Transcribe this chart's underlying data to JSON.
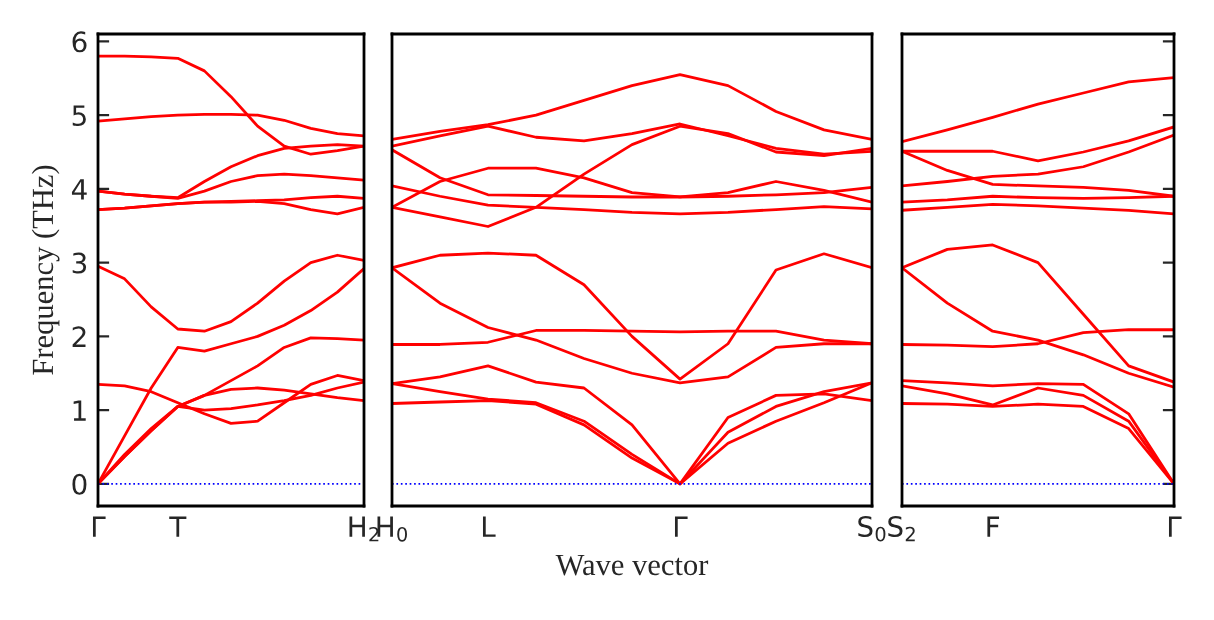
{
  "chart_data": [
    {
      "type": "line",
      "ylabel": "Frequency (THz)",
      "ylim": [
        -0.3,
        6.1
      ],
      "yticks": [
        0,
        1,
        2,
        3,
        4,
        5,
        6
      ],
      "categories": [
        "Γ",
        null,
        null,
        "T",
        null,
        null,
        null,
        null,
        null,
        null,
        "H$_{2}$"
      ],
      "ref_lines": [
        {
          "axis": "y",
          "value": 0,
          "color": "#0000ff",
          "line_style": "dotted"
        }
      ],
      "series": [
        {
          "color": "#ff0000",
          "values": [
            5.8,
            5.8,
            5.79,
            5.77,
            5.6,
            5.25,
            4.85,
            4.58,
            4.47,
            4.52,
            4.58
          ]
        },
        {
          "color": "#ff0000",
          "values": [
            4.92,
            4.95,
            4.98,
            5.0,
            5.01,
            5.01,
            5.0,
            4.93,
            4.82,
            4.75,
            4.72
          ]
        },
        {
          "color": "#ff0000",
          "values": [
            3.97,
            3.93,
            3.9,
            3.88,
            4.1,
            4.3,
            4.45,
            4.55,
            4.58,
            4.6,
            4.58
          ]
        },
        {
          "color": "#ff0000",
          "values": [
            3.97,
            3.93,
            3.9,
            3.87,
            3.97,
            4.1,
            4.18,
            4.2,
            4.18,
            4.15,
            4.12
          ]
        },
        {
          "color": "#ff0000",
          "values": [
            3.72,
            3.74,
            3.77,
            3.8,
            3.82,
            3.83,
            3.84,
            3.85,
            3.88,
            3.9,
            3.87
          ]
        },
        {
          "color": "#ff0000",
          "values": [
            3.72,
            3.74,
            3.77,
            3.8,
            3.82,
            3.82,
            3.83,
            3.8,
            3.72,
            3.66,
            3.75
          ]
        },
        {
          "color": "#ff0000",
          "values": [
            2.95,
            2.78,
            2.4,
            2.1,
            2.07,
            2.2,
            2.45,
            2.75,
            3.0,
            3.1,
            3.03
          ]
        },
        {
          "color": "#ff0000",
          "values": [
            0,
            0.65,
            1.3,
            1.85,
            1.8,
            1.9,
            2.0,
            2.15,
            2.35,
            2.6,
            2.92
          ]
        },
        {
          "color": "#ff0000",
          "values": [
            0,
            0.4,
            0.75,
            1.05,
            1.2,
            1.4,
            1.6,
            1.85,
            1.98,
            1.97,
            1.95
          ]
        },
        {
          "color": "#ff0000",
          "values": [
            0,
            0.37,
            0.72,
            1.05,
            1.2,
            1.28,
            1.3,
            1.27,
            1.22,
            1.17,
            1.13
          ]
        },
        {
          "color": "#ff0000",
          "values": [
            0,
            0.37,
            0.72,
            1.05,
            1.0,
            1.02,
            1.07,
            1.13,
            1.2,
            1.3,
            1.38
          ]
        },
        {
          "color": "#ff0000",
          "values": [
            1.35,
            1.33,
            1.25,
            1.1,
            0.95,
            0.82,
            0.85,
            1.1,
            1.35,
            1.47,
            1.4
          ]
        }
      ]
    },
    {
      "type": "line",
      "xlabel": "Wave vector",
      "ylim": [
        -0.3,
        6.1
      ],
      "tick_labels": "x",
      "categories": [
        "H$_{0}$",
        null,
        "L",
        null,
        null,
        null,
        "Γ",
        null,
        null,
        null,
        "S$_{0}$"
      ],
      "ref_lines": [
        {
          "axis": "y",
          "value": 0,
          "color": "#0000ff",
          "line_style": "dotted"
        }
      ],
      "series": [
        {
          "color": "#ff0000",
          "values": [
            4.67,
            4.78,
            4.87,
            5.0,
            5.2,
            5.4,
            5.55,
            5.4,
            5.05,
            4.8,
            4.67
          ]
        },
        {
          "color": "#ff0000",
          "values": [
            4.58,
            4.72,
            4.85,
            4.7,
            4.65,
            4.75,
            4.88,
            4.72,
            4.55,
            4.47,
            4.51
          ]
        },
        {
          "color": "#ff0000",
          "values": [
            4.53,
            4.15,
            3.92,
            3.91,
            3.9,
            3.89,
            3.89,
            3.9,
            3.92,
            3.95,
            4.02
          ]
        },
        {
          "color": "#ff0000",
          "values": [
            3.75,
            3.62,
            3.49,
            3.75,
            4.2,
            4.6,
            4.85,
            4.75,
            4.5,
            4.45,
            4.55
          ]
        },
        {
          "color": "#ff0000",
          "values": [
            4.04,
            3.9,
            3.78,
            3.75,
            3.72,
            3.68,
            3.66,
            3.68,
            3.72,
            3.76,
            3.73
          ]
        },
        {
          "color": "#ff0000",
          "values": [
            3.75,
            4.1,
            4.28,
            4.28,
            4.15,
            3.95,
            3.89,
            3.95,
            4.1,
            3.98,
            3.82
          ]
        },
        {
          "color": "#ff0000",
          "values": [
            2.93,
            3.1,
            3.13,
            3.1,
            2.7,
            2.0,
            1.42,
            1.9,
            2.9,
            3.12,
            2.93
          ]
        },
        {
          "color": "#ff0000",
          "values": [
            2.93,
            2.45,
            2.12,
            1.95,
            1.7,
            1.5,
            1.37,
            1.45,
            1.85,
            1.9,
            1.9
          ]
        },
        {
          "color": "#ff0000",
          "values": [
            1.89,
            1.89,
            1.92,
            2.08,
            2.08,
            2.07,
            2.06,
            2.07,
            2.07,
            1.95,
            1.9
          ]
        },
        {
          "color": "#ff0000",
          "values": [
            1.36,
            1.45,
            1.6,
            1.38,
            1.3,
            0.8,
            0,
            0.55,
            0.85,
            1.1,
            1.37
          ]
        },
        {
          "color": "#ff0000",
          "values": [
            1.36,
            1.25,
            1.15,
            1.1,
            0.85,
            0.4,
            0,
            0.7,
            1.05,
            1.25,
            1.37
          ]
        },
        {
          "color": "#ff0000",
          "values": [
            1.09,
            1.11,
            1.13,
            1.08,
            0.8,
            0.35,
            0,
            0.9,
            1.2,
            1.22,
            1.13
          ]
        }
      ]
    },
    {
      "type": "line",
      "ylim": [
        -0.3,
        6.1
      ],
      "tick_labels": "x",
      "yticks": [
        {
          "value": 0,
          "label": null
        },
        {
          "value": 1,
          "label": null
        },
        {
          "value": 2,
          "label": null
        },
        {
          "value": 3,
          "label": null
        },
        {
          "value": 4,
          "label": null
        },
        {
          "value": 5,
          "label": null
        },
        {
          "value": 6,
          "label": null
        }
      ],
      "categories": [
        "S$_{2}$",
        null,
        "F",
        null,
        null,
        null,
        "Γ"
      ],
      "ref_lines": [
        {
          "axis": "y",
          "value": 0,
          "color": "#0000ff",
          "line_style": "dotted"
        }
      ],
      "series": [
        {
          "color": "#ff0000",
          "values": [
            4.64,
            4.8,
            4.97,
            5.15,
            5.3,
            5.45,
            5.51
          ]
        },
        {
          "color": "#ff0000",
          "values": [
            4.51,
            4.51,
            4.51,
            4.38,
            4.5,
            4.65,
            4.84
          ]
        },
        {
          "color": "#ff0000",
          "values": [
            4.51,
            4.25,
            4.06,
            4.04,
            4.02,
            3.98,
            3.9
          ]
        },
        {
          "color": "#ff0000",
          "values": [
            4.04,
            4.1,
            4.17,
            4.2,
            4.3,
            4.5,
            4.73
          ]
        },
        {
          "color": "#ff0000",
          "values": [
            3.82,
            3.85,
            3.9,
            3.88,
            3.87,
            3.88,
            3.9
          ]
        },
        {
          "color": "#ff0000",
          "values": [
            3.71,
            3.75,
            3.79,
            3.77,
            3.74,
            3.71,
            3.66
          ]
        },
        {
          "color": "#ff0000",
          "values": [
            2.93,
            3.18,
            3.24,
            3.0,
            2.3,
            1.6,
            1.38
          ]
        },
        {
          "color": "#ff0000",
          "values": [
            2.93,
            2.45,
            2.07,
            1.95,
            1.75,
            1.5,
            1.31
          ]
        },
        {
          "color": "#ff0000",
          "values": [
            1.89,
            1.88,
            1.86,
            1.9,
            2.05,
            2.09,
            2.09
          ]
        },
        {
          "color": "#ff0000",
          "values": [
            1.4,
            1.37,
            1.33,
            1.36,
            1.35,
            0.95,
            0
          ]
        },
        {
          "color": "#ff0000",
          "values": [
            1.33,
            1.22,
            1.07,
            1.3,
            1.2,
            0.85,
            0
          ]
        },
        {
          "color": "#ff0000",
          "values": [
            1.09,
            1.08,
            1.05,
            1.08,
            1.05,
            0.75,
            0
          ]
        }
      ]
    }
  ]
}
